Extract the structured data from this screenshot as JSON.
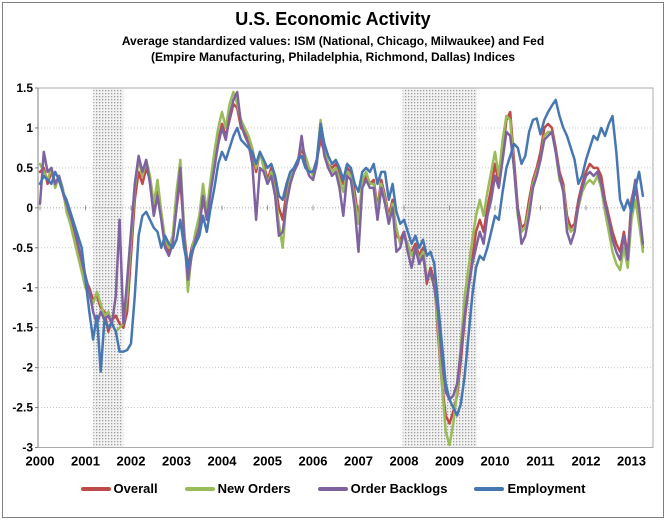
{
  "figure": {
    "title": "U.S. Economic Activity",
    "subtitle_line1": "Average standardized values: ISM (National, Chicago, Milwaukee) and Fed",
    "subtitle_line2": "(Empire Manufacturing, Philadelphia, Richmond, Dallas) Indices"
  },
  "chart_data": {
    "type": "line",
    "title": "U.S. Economic Activity",
    "subtitle": "Average standardized values: ISM (National, Chicago, Milwaukee) and Fed (Empire Manufacturing, Philadelphia, Richmond, Dallas) Indices",
    "x_start_year": 2000,
    "points_per_year": 12,
    "x_tick_labels": [
      "2000",
      "2001",
      "2002",
      "2003",
      "2004",
      "2005",
      "2006",
      "2007",
      "2008",
      "2009",
      "2010",
      "2011",
      "2012",
      "2013"
    ],
    "y_tick_values": [
      1.5,
      1,
      0.5,
      0,
      -0.5,
      -1,
      -1.5,
      -2,
      -2.5,
      -3
    ],
    "y_tick_labels": [
      "1.5",
      "1",
      "0.5",
      "0",
      "-0.5",
      "-1",
      "-1.5",
      "-2",
      "-2.5",
      "-3"
    ],
    "ylim": [
      -3,
      1.5
    ],
    "grid": "horizontal-dotted",
    "legend_position": "bottom",
    "band_color": "#e3e3e3",
    "recession_bands": [
      {
        "start": 2001.17,
        "end": 2001.83
      },
      {
        "start": 2007.97,
        "end": 2009.6
      }
    ],
    "series": [
      {
        "name": "Overall",
        "color": "#be4b48",
        "values": [
          0.45,
          0.5,
          0.3,
          0.45,
          0.3,
          0.35,
          0.2,
          0,
          -0.15,
          -0.3,
          -0.5,
          -0.7,
          -0.9,
          -1,
          -1.15,
          -1.1,
          -1.25,
          -1.3,
          -1.55,
          -1.4,
          -1.35,
          -1.45,
          -1.5,
          -1.3,
          -0.6,
          0.1,
          0.45,
          0.3,
          0.5,
          0.35,
          0,
          0.2,
          -0.1,
          -0.45,
          -0.55,
          -0.4,
          0,
          0.35,
          -0.3,
          -0.75,
          -0.5,
          -0.35,
          -0.2,
          0.1,
          -0.1,
          0.25,
          0.55,
          0.85,
          1.05,
          0.9,
          1.1,
          1.3,
          1.25,
          1,
          0.95,
          0.85,
          0.7,
          0.45,
          0.7,
          0.55,
          0.35,
          0.5,
          0.3,
          0,
          -0.15,
          0.2,
          0.4,
          0.5,
          0.55,
          0.75,
          0.6,
          0.45,
          0.45,
          0.6,
          0.85,
          0.7,
          0.55,
          0.5,
          0.55,
          0.4,
          0.3,
          0.5,
          0.45,
          0.2,
          -0.15,
          0.3,
          0.4,
          0.3,
          0.35,
          0,
          0.35,
          0.15,
          -0.1,
          0.1,
          -0.35,
          -0.4,
          -0.3,
          -0.5,
          -0.55,
          -0.45,
          -0.6,
          -0.5,
          -0.95,
          -0.75,
          -0.9,
          -1.6,
          -2.2,
          -2.6,
          -2.7,
          -2.55,
          -2.35,
          -1.9,
          -1.4,
          -1,
          -0.65,
          -0.3,
          -0.15,
          -0.3,
          0,
          0.25,
          0.55,
          0.3,
          0.7,
          1.1,
          1.2,
          0.6,
          0,
          -0.25,
          -0.2,
          0.1,
          0.35,
          0.5,
          0.7,
          1,
          1.05,
          1,
          0.75,
          0.45,
          0.3,
          -0.1,
          -0.25,
          -0.2,
          0.1,
          0.3,
          0.45,
          0.55,
          0.5,
          0.5,
          0.4,
          0.1,
          -0.1,
          -0.3,
          -0.45,
          -0.55,
          -0.3,
          -0.6,
          0.1,
          0.3,
          -0.05,
          -0.5
        ]
      },
      {
        "name": "New Orders",
        "color": "#9abb59",
        "values": [
          0.55,
          0.45,
          0.35,
          0.5,
          0.25,
          0.4,
          0.25,
          -0.05,
          -0.2,
          -0.4,
          -0.6,
          -0.8,
          -1,
          -1.1,
          -1.2,
          -1.05,
          -1.2,
          -1.35,
          -1.3,
          -1.45,
          -1.55,
          -1.5,
          -1.45,
          -1.1,
          -0.4,
          0.25,
          0.6,
          0.4,
          0.6,
          0.4,
          0.05,
          0.35,
          -0.05,
          -0.4,
          -0.5,
          -0.35,
          0.2,
          0.6,
          -0.25,
          -1.05,
          -0.55,
          -0.3,
          -0.1,
          0.3,
          -0.05,
          0.35,
          0.7,
          1,
          1.2,
          1,
          1.3,
          1.45,
          1.3,
          1.1,
          1,
          0.9,
          0.75,
          0.5,
          0.7,
          0.5,
          0.3,
          0.45,
          0.2,
          -0.2,
          -0.5,
          0.1,
          0.35,
          0.5,
          0.6,
          0.8,
          0.65,
          0.5,
          0.4,
          0.6,
          1.1,
          0.75,
          0.55,
          0.45,
          0.5,
          0.35,
          0.2,
          0.45,
          0.4,
          0.1,
          -0.2,
          0.35,
          0.45,
          0.3,
          0.3,
          -0.05,
          0.3,
          0.1,
          -0.15,
          0.05,
          -0.25,
          -0.45,
          -0.35,
          -0.45,
          -0.6,
          -0.5,
          -0.65,
          -0.55,
          -0.85,
          -0.85,
          -0.95,
          -1.5,
          -2.2,
          -2.8,
          -2.97,
          -2.7,
          -2.3,
          -1.7,
          -1.1,
          -0.75,
          -0.4,
          -0.1,
          0.1,
          -0.1,
          0.2,
          0.45,
          0.7,
          0.4,
          0.85,
          1.15,
          1.1,
          0.5,
          -0.1,
          -0.3,
          -0.25,
          0,
          0.3,
          0.45,
          0.6,
          0.9,
          0.95,
          0.95,
          0.7,
          0.35,
          0.25,
          -0.2,
          -0.3,
          -0.25,
          0,
          0.2,
          0.3,
          0.35,
          0.3,
          0.4,
          0.25,
          -0.05,
          -0.3,
          -0.55,
          -0.7,
          -0.78,
          -0.5,
          -0.75,
          -0.15,
          0.1,
          -0.2,
          -0.55
        ]
      },
      {
        "name": "Order Backlogs",
        "color": "#7f63a1",
        "values": [
          0.05,
          0.7,
          0.45,
          0.5,
          0.3,
          0.4,
          0.2,
          0.05,
          -0.1,
          -0.25,
          -0.45,
          -0.65,
          -0.85,
          -1.05,
          -1.3,
          -1.45,
          -1.3,
          -1.4,
          -1.35,
          -1.45,
          -1.1,
          -0.15,
          -1.45,
          -0.9,
          -0.3,
          0.3,
          0.65,
          0.45,
          0.6,
          0.3,
          -0.1,
          0.15,
          -0.15,
          -0.5,
          -0.6,
          -0.45,
          0,
          0.5,
          -0.35,
          -0.9,
          -0.6,
          -0.4,
          -0.25,
          0.15,
          -0.15,
          0.2,
          0.5,
          0.8,
          1,
          0.85,
          1.15,
          1.35,
          1.45,
          1.05,
          0.9,
          0.8,
          0.55,
          -0.15,
          0.5,
          0.45,
          0.3,
          0.4,
          0.15,
          -0.35,
          -0.3,
          0.05,
          0.3,
          0.45,
          0.55,
          0.9,
          0.55,
          0.4,
          0.35,
          0.55,
          1,
          0.65,
          0.5,
          0.4,
          0.45,
          0.25,
          -0.1,
          0.4,
          0.35,
          0,
          -0.55,
          0.25,
          0.35,
          0.25,
          0.25,
          -0.15,
          0.25,
          0.05,
          -0.2,
          0,
          -0.55,
          -0.5,
          -0.3,
          -0.55,
          -0.75,
          -0.5,
          -0.7,
          -0.6,
          -0.9,
          -0.8,
          -1,
          -1.3,
          -1.9,
          -2.3,
          -2.4,
          -2.35,
          -2.2,
          -1.8,
          -1.35,
          -1,
          -0.7,
          -0.5,
          -0.3,
          -0.45,
          -0.1,
          0.1,
          0.4,
          0.25,
          0.6,
          0.95,
          0.9,
          0.5,
          -0.05,
          -0.45,
          -0.35,
          -0.1,
          0.25,
          0.4,
          0.6,
          0.85,
          0.9,
          0.95,
          0.7,
          0.4,
          0.2,
          -0.3,
          -0.45,
          -0.3,
          0.05,
          0.25,
          0.4,
          0.45,
          0.4,
          0.45,
          0.3,
          0.05,
          -0.15,
          -0.4,
          -0.55,
          -0.65,
          -0.35,
          -0.65,
          0.05,
          0.35,
          0,
          -0.45
        ]
      },
      {
        "name": "Employment",
        "color": "#4677b2",
        "values": [
          0.3,
          0.4,
          0.35,
          0.3,
          0.45,
          0.35,
          0.2,
          0.1,
          -0.05,
          -0.2,
          -0.35,
          -0.5,
          -0.9,
          -1.3,
          -1.65,
          -1.35,
          -2.05,
          -1.4,
          -1.5,
          -1.45,
          -1.55,
          -1.8,
          -1.8,
          -1.78,
          -1.7,
          -1.1,
          -0.35,
          -0.1,
          -0.05,
          -0.15,
          -0.25,
          -0.3,
          -0.5,
          -0.35,
          -0.45,
          -0.5,
          -0.4,
          -0.15,
          -0.5,
          -0.75,
          -0.55,
          -0.45,
          -0.35,
          -0.1,
          -0.3,
          0,
          0.25,
          0.55,
          0.7,
          0.6,
          0.75,
          0.9,
          1,
          0.85,
          0.8,
          0.75,
          0.7,
          0.55,
          0.7,
          0.6,
          0.5,
          0.55,
          0.4,
          0.15,
          0.1,
          0.3,
          0.45,
          0.5,
          0.6,
          0.65,
          0.5,
          0.45,
          0.45,
          0.6,
          1.05,
          0.8,
          0.65,
          0.55,
          0.6,
          0.5,
          0.35,
          0.55,
          0.5,
          0.3,
          0.2,
          0.45,
          0.5,
          0.45,
          0.55,
          0.3,
          0.45,
          0.45,
          0.1,
          0.3,
          -0.05,
          -0.2,
          -0.15,
          -0.3,
          -0.45,
          -0.35,
          -0.5,
          -0.4,
          -0.6,
          -0.55,
          -0.7,
          -1.2,
          -1.7,
          -2.2,
          -2.4,
          -2.5,
          -2.6,
          -2.45,
          -2.1,
          -1.6,
          -1.1,
          -0.75,
          -0.6,
          -0.65,
          -0.5,
          -0.3,
          -0.1,
          -0.15,
          0.2,
          0.5,
          0.65,
          0.8,
          0.75,
          0.55,
          0.65,
          0.95,
          1.1,
          1.12,
          0.92,
          1.1,
          1.2,
          1.28,
          1.35,
          1.15,
          1,
          0.9,
          0.75,
          0.6,
          0.3,
          0.4,
          0.6,
          0.75,
          0.9,
          0.85,
          1,
          0.9,
          1.05,
          1.15,
          0.7,
          0.1,
          -0.03,
          0.1,
          -0.05,
          0.25,
          0.45,
          0.15
        ]
      }
    ]
  }
}
